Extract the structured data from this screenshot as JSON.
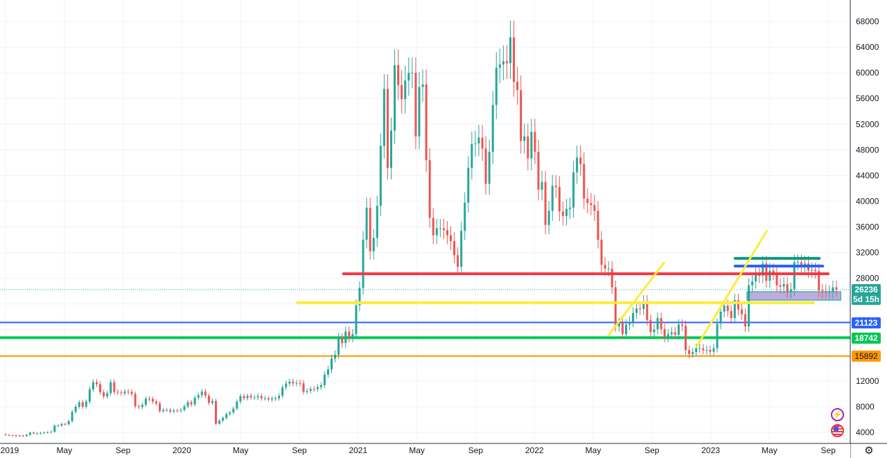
{
  "chart_data": {
    "type": "candlestick",
    "interval": "weekly",
    "start": "2019-01",
    "end": "2023-09",
    "y_axis": {
      "min": 4000,
      "max": 68000,
      "step": 4000,
      "position": "right"
    },
    "x_ticks": [
      {
        "label": "2019",
        "month": 0
      },
      {
        "label": "May",
        "month": 4
      },
      {
        "label": "Sep",
        "month": 8
      },
      {
        "label": "2020",
        "month": 12
      },
      {
        "label": "May",
        "month": 16
      },
      {
        "label": "Sep",
        "month": 20
      },
      {
        "label": "2021",
        "month": 24
      },
      {
        "label": "May",
        "month": 28
      },
      {
        "label": "Sep",
        "month": 32
      },
      {
        "label": "2022",
        "month": 36
      },
      {
        "label": "May",
        "month": 40
      },
      {
        "label": "Sep",
        "month": 44
      },
      {
        "label": "2023",
        "month": 48
      },
      {
        "label": "May",
        "month": 52
      },
      {
        "label": "Sep",
        "month": 56
      }
    ],
    "closes": [
      3600,
      3550,
      3530,
      3450,
      3500,
      3420,
      3620,
      3950,
      3830,
      3830,
      3900,
      3980,
      4020,
      4100,
      5050,
      5070,
      5300,
      5280,
      5750,
      7200,
      8000,
      8700,
      7990,
      8800,
      10700,
      11800,
      11500,
      10250,
      9600,
      10100,
      11800,
      10300,
      10200,
      10100,
      10350,
      10300,
      10000,
      8050,
      7950,
      8300,
      9250,
      9200,
      8800,
      8500,
      7300,
      7500,
      7500,
      7250,
      7400,
      7390,
      7500,
      8050,
      8700,
      8350,
      9400,
      9800,
      10350,
      9700,
      8600,
      8900,
      5350,
      5830,
      6250,
      6850,
      7100,
      7700,
      8800,
      9650,
      9350,
      9700,
      9450,
      9450,
      9650,
      9300,
      9300,
      9130,
      9250,
      9300,
      9700,
      11000,
      11600,
      11900,
      11650,
      11700,
      11650,
      10300,
      10450,
      10770,
      10730,
      11050,
      11350,
      13000,
      13800,
      15500,
      16100,
      18700,
      17900,
      19700,
      18800,
      19300,
      23800,
      26500,
      34000,
      39000,
      32200,
      34300,
      39300,
      48600,
      57500,
      45200,
      51000,
      61200,
      58100,
      55900,
      58800,
      60000,
      60000,
      50100,
      57800,
      58200,
      46400,
      37400,
      34700,
      35800,
      35800,
      35500,
      34700,
      33800,
      31600,
      29800,
      35400,
      39800,
      45200,
      48900,
      49000,
      49900,
      48200,
      42700,
      47700,
      55000,
      60800,
      61300,
      61800,
      61500,
      65500,
      58600,
      57300,
      49400,
      50100,
      46700,
      50800,
      47700,
      41800,
      43000,
      36300,
      38500,
      42400,
      42200,
      38400,
      37700,
      38800,
      39000,
      44500,
      46800,
      45800,
      40400,
      39700,
      39400,
      38500,
      34000,
      30100,
      29500,
      29500,
      26600,
      20500,
      21000,
      19300,
      20800,
      21200,
      22600,
      23300,
      23200,
      24400,
      21500,
      19600,
      20050,
      21800,
      20100,
      18800,
      19300,
      19600,
      19200,
      20800,
      20600,
      16800,
      16200,
      16500,
      17100,
      17100,
      16800,
      16850,
      16550,
      17100,
      20900,
      22800,
      23750,
      22900,
      21800,
      24600,
      23150,
      22400,
      20500,
      26900,
      27500,
      28500,
      28400,
      30300,
      27600,
      29200,
      28900,
      26900,
      26700,
      27100,
      25900,
      26300,
      30500,
      30500,
      30100,
      30300,
      29200,
      29300,
      29100,
      26100,
      26000,
      25900,
      25900,
      26600,
      26236
    ],
    "open_first": 3700,
    "colors": {
      "up": "#26a69a",
      "down": "#ef5350"
    },
    "last_price": {
      "value": "26236",
      "countdown": "5d 15h",
      "color": "#26a69a"
    },
    "drawings": {
      "horizontal_lines": [
        {
          "price": 21123,
          "label": "21123",
          "color": "#2962ff",
          "full": true
        },
        {
          "price": 18742,
          "label": "18742",
          "color": "#00c853",
          "full": true
        },
        {
          "price": 15892,
          "label": "15892",
          "color": "#ff9800",
          "full": true
        }
      ],
      "segments": [
        {
          "price": 28700,
          "from": "2020-12",
          "to": "2023-09",
          "color": "#f23645"
        },
        {
          "price": 24200,
          "from": "2020-11",
          "to": "2023-08",
          "color": "#ffeb3b"
        },
        {
          "price": 31100,
          "from": "2023-02",
          "to": "2023-09",
          "color": "#089981"
        },
        {
          "price": 29900,
          "from": "2023-02",
          "to": "2023-09",
          "color": "#2962ff"
        }
      ],
      "trend_lines": [
        {
          "from": [
            "2022-06",
            19000
          ],
          "to": [
            "2022-09",
            30500
          ],
          "color": "#ffeb3b"
        },
        {
          "from": [
            "2022-12",
            17200
          ],
          "to": [
            "2023-04",
            35500
          ],
          "color": "#ffeb3b"
        }
      ],
      "zone": {
        "top": 25900,
        "bottom": 24600,
        "from": "2023-03",
        "to": "2023-09",
        "color": "#b39ddb"
      }
    }
  },
  "icons": [
    "lightning-icon",
    "us-flag-icon",
    "settings-icon"
  ]
}
